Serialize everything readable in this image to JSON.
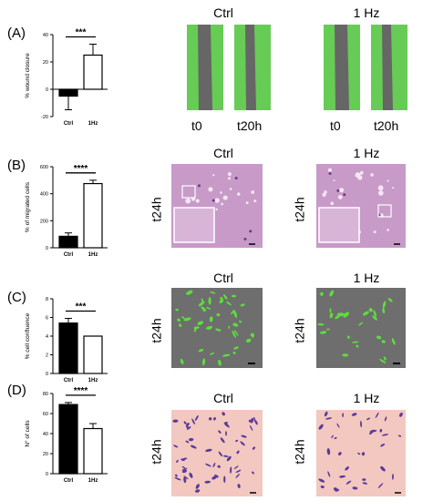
{
  "panels": [
    {
      "letter": "(A)",
      "images": {
        "ctrl": "Ctrl",
        "hz": "1 Hz",
        "t0": "t0",
        "t20": "t20h"
      }
    },
    {
      "letter": "(B)",
      "images": {
        "ctrl": "Ctrl",
        "hz": "1 Hz",
        "time": "t24h"
      }
    },
    {
      "letter": "(C)",
      "images": {
        "ctrl": "Ctrl",
        "hz": "1 Hz",
        "time": "t24h"
      }
    },
    {
      "letter": "(D)",
      "images": {
        "ctrl": "Ctrl",
        "hz": "1 Hz",
        "time": "t24h"
      }
    }
  ],
  "colors": {
    "bar_ctrl": "#000000",
    "bar_hz": "#ffffff",
    "wound_green": "#66cc55",
    "wound_gray": "#666666",
    "stain_pink": "#c89ac8",
    "violet": "#5a3a9a",
    "confluence_gray": "#6e6e6e",
    "crystal_bg": "#f2c8c0"
  },
  "chart_data": [
    {
      "type": "bar",
      "panel": "A",
      "ylabel": "% wound closure",
      "categories": [
        "Ctrl",
        "1Hz"
      ],
      "values": [
        -5,
        25
      ],
      "errors": [
        10,
        8
      ],
      "ylim": [
        -20,
        40
      ],
      "yticks": [
        "-20",
        "0",
        "20",
        "40"
      ],
      "significance": "***"
    },
    {
      "type": "bar",
      "panel": "B",
      "ylabel": "% of migrated cells",
      "categories": [
        "Ctrl",
        "1Hz"
      ],
      "values": [
        85,
        475
      ],
      "errors": [
        25,
        25
      ],
      "ylim": [
        0,
        600
      ],
      "yticks": [
        "0",
        "200",
        "400",
        "600"
      ],
      "significance": "****"
    },
    {
      "type": "bar",
      "panel": "C",
      "ylabel": "% cell confluence",
      "categories": [
        "Ctrl",
        "1Hz"
      ],
      "values": [
        5.4,
        4.0
      ],
      "errors": [
        0.5,
        0
      ],
      "ylim": [
        0,
        8
      ],
      "yticks": [
        "0",
        "2",
        "4",
        "6",
        "8"
      ],
      "significance": "***"
    },
    {
      "type": "bar",
      "panel": "D",
      "ylabel": "N° of cells",
      "categories": [
        "Ctrl",
        "1Hz"
      ],
      "values": [
        69,
        45
      ],
      "errors": [
        2,
        5
      ],
      "ylim": [
        0,
        80
      ],
      "yticks": [
        "0",
        "20",
        "40",
        "60",
        "80"
      ],
      "significance": "****"
    }
  ]
}
